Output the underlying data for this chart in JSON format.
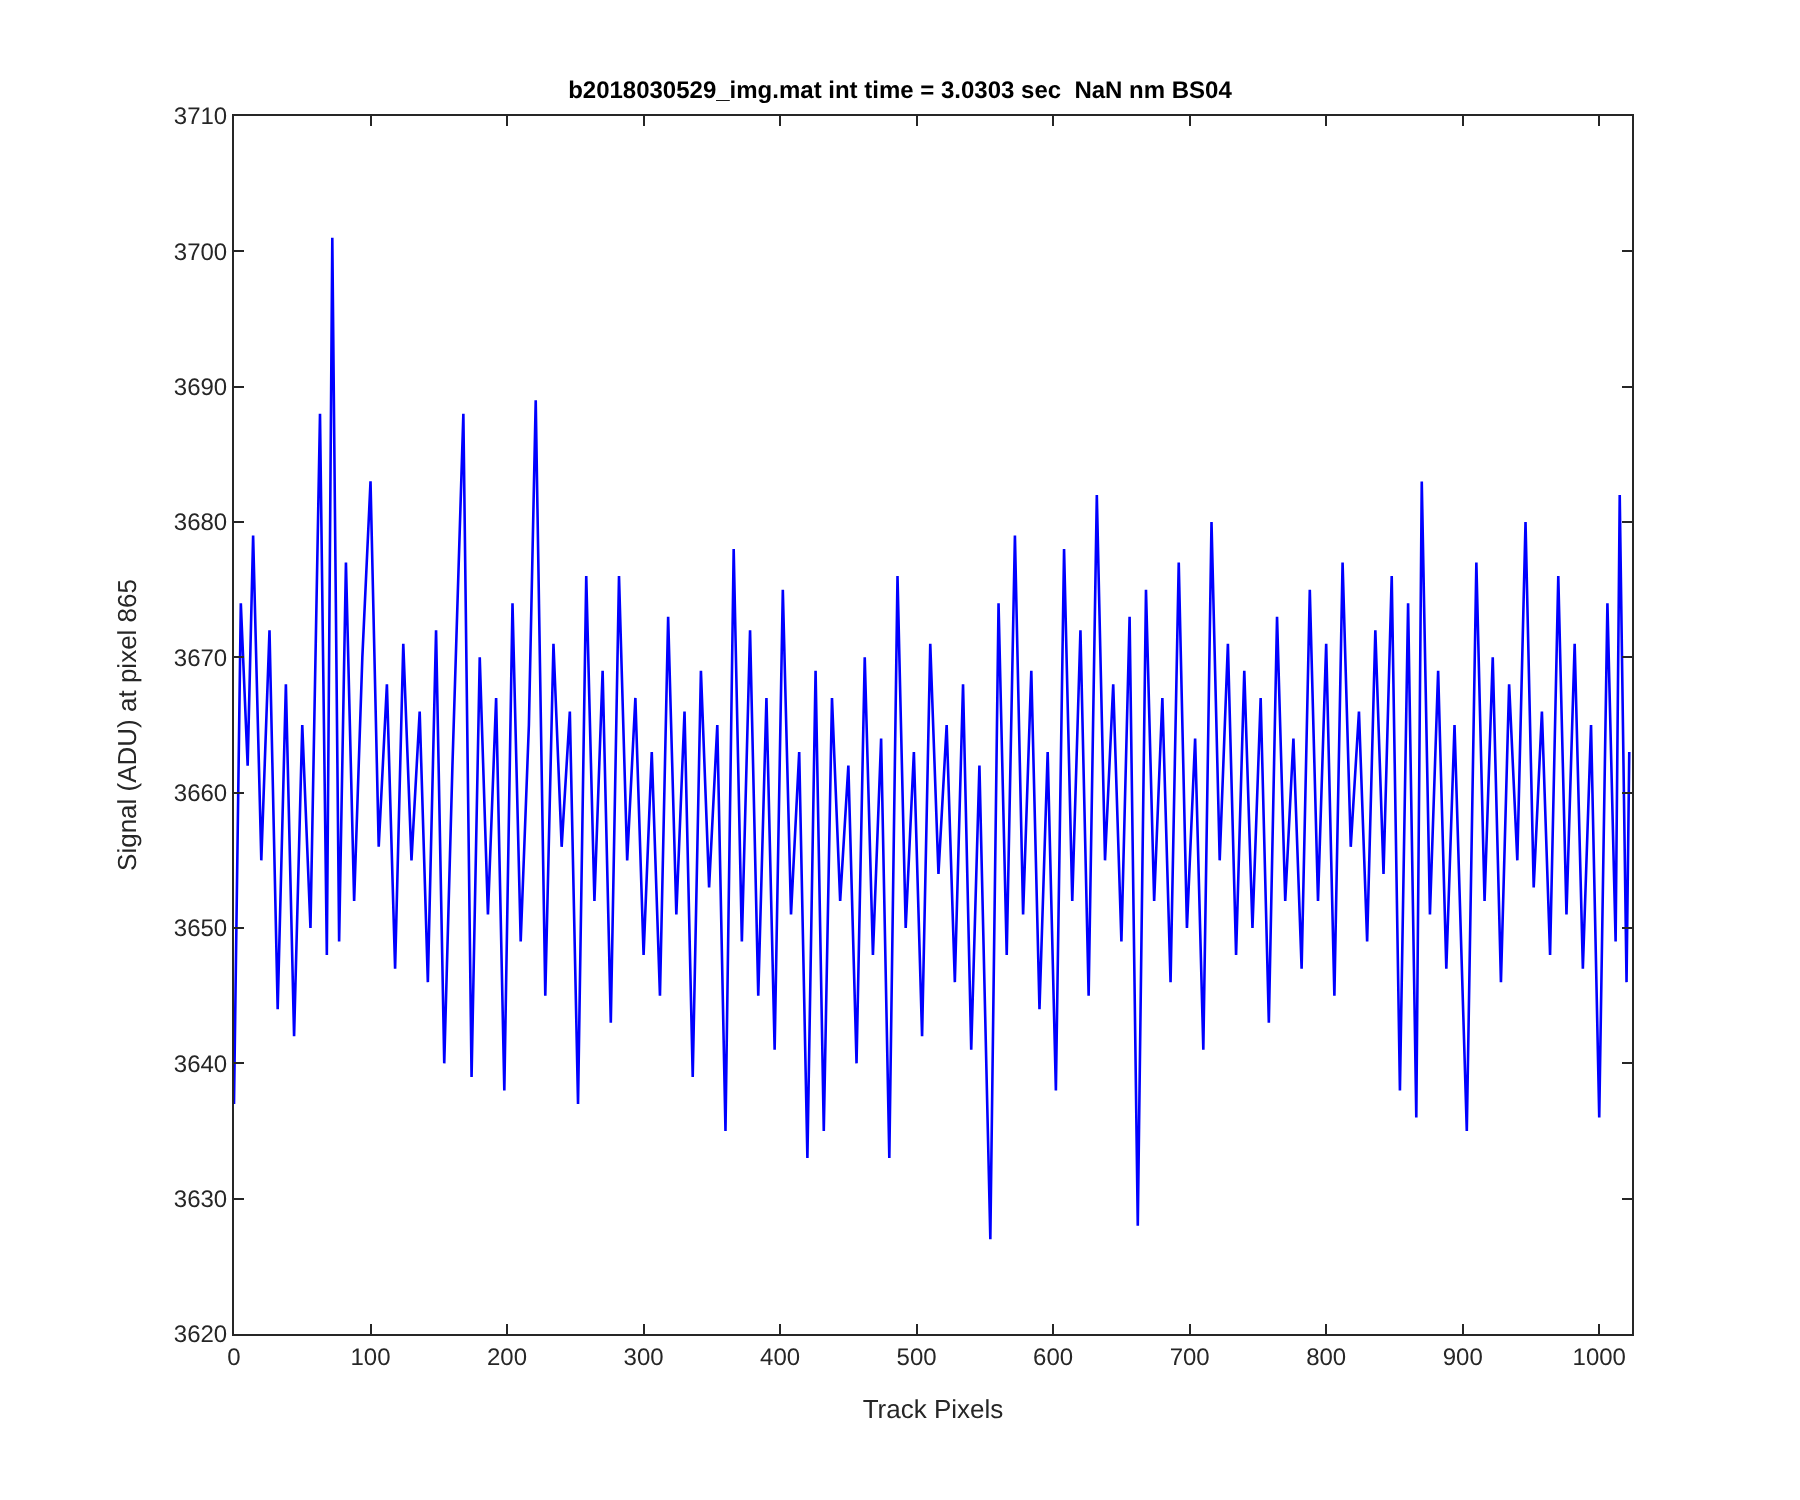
{
  "chart_data": {
    "type": "line",
    "title": "b2018030529_img.mat int time = 3.0303 sec  NaN nm BS04",
    "xlabel": "Track Pixels",
    "ylabel": "Signal (ADU) at pixel 865",
    "x": [
      0,
      5,
      10,
      14,
      20,
      26,
      32,
      38,
      44,
      50,
      56,
      63,
      68,
      72,
      77,
      82,
      88,
      94,
      100,
      106,
      112,
      118,
      124,
      130,
      136,
      142,
      148,
      154,
      160,
      168,
      174,
      180,
      186,
      192,
      198,
      204,
      210,
      216,
      221,
      228,
      234,
      240,
      246,
      252,
      258,
      264,
      270,
      276,
      282,
      288,
      294,
      300,
      306,
      312,
      318,
      324,
      330,
      336,
      342,
      348,
      354,
      360,
      366,
      372,
      378,
      384,
      390,
      396,
      402,
      408,
      414,
      420,
      426,
      432,
      438,
      444,
      450,
      456,
      462,
      468,
      474,
      480,
      486,
      492,
      498,
      504,
      510,
      516,
      522,
      528,
      534,
      540,
      546,
      554,
      560,
      566,
      572,
      578,
      584,
      590,
      596,
      602,
      608,
      614,
      620,
      626,
      632,
      638,
      644,
      650,
      656,
      662,
      668,
      674,
      680,
      686,
      692,
      698,
      704,
      710,
      716,
      722,
      728,
      734,
      740,
      746,
      752,
      758,
      764,
      770,
      776,
      782,
      788,
      794,
      800,
      806,
      812,
      818,
      824,
      830,
      836,
      842,
      848,
      854,
      860,
      866,
      870,
      876,
      882,
      888,
      894,
      903,
      910,
      916,
      922,
      928,
      934,
      940,
      946,
      952,
      958,
      964,
      970,
      976,
      982,
      988,
      994,
      1000,
      1006,
      1012,
      1015,
      1020,
      1022
    ],
    "series": [
      {
        "color": "#0000ff",
        "values": [
          3637,
          3674,
          3662,
          3679,
          3655,
          3672,
          3644,
          3668,
          3642,
          3665,
          3650,
          3688,
          3648,
          3701,
          3649,
          3677,
          3652,
          3670,
          3683,
          3656,
          3668,
          3647,
          3671,
          3655,
          3666,
          3646,
          3672,
          3640,
          3662,
          3688,
          3639,
          3670,
          3651,
          3667,
          3638,
          3674,
          3649,
          3665,
          3689,
          3645,
          3671,
          3656,
          3666,
          3637,
          3676,
          3652,
          3669,
          3643,
          3676,
          3655,
          3667,
          3648,
          3663,
          3645,
          3673,
          3651,
          3666,
          3639,
          3669,
          3653,
          3665,
          3635,
          3678,
          3649,
          3672,
          3645,
          3667,
          3641,
          3675,
          3651,
          3663,
          3633,
          3669,
          3635,
          3667,
          3652,
          3662,
          3640,
          3670,
          3648,
          3664,
          3633,
          3676,
          3650,
          3663,
          3642,
          3671,
          3654,
          3665,
          3646,
          3668,
          3641,
          3662,
          3627,
          3674,
          3648,
          3679,
          3651,
          3669,
          3644,
          3663,
          3638,
          3678,
          3652,
          3672,
          3645,
          3682,
          3655,
          3668,
          3649,
          3673,
          3628,
          3675,
          3652,
          3667,
          3646,
          3677,
          3650,
          3664,
          3641,
          3680,
          3655,
          3671,
          3648,
          3669,
          3650,
          3667,
          3643,
          3673,
          3652,
          3664,
          3647,
          3675,
          3652,
          3671,
          3645,
          3677,
          3656,
          3666,
          3649,
          3672,
          3654,
          3676,
          3638,
          3674,
          3636,
          3683,
          3651,
          3669,
          3647,
          3665,
          3635,
          3677,
          3652,
          3670,
          3646,
          3668,
          3655,
          3680,
          3653,
          3666,
          3648,
          3676,
          3651,
          3671,
          3647,
          3665,
          3636,
          3674,
          3649,
          3682,
          3646,
          3663
        ]
      }
    ],
    "xlim": [
      0,
      1024
    ],
    "ylim": [
      3620,
      3710
    ],
    "xticks": [
      0,
      100,
      200,
      300,
      400,
      500,
      600,
      700,
      800,
      900,
      1000
    ],
    "yticks": [
      3620,
      3630,
      3640,
      3650,
      3660,
      3670,
      3680,
      3690,
      3700,
      3710
    ],
    "legend": false,
    "marker": "none",
    "line_style": "solid"
  }
}
